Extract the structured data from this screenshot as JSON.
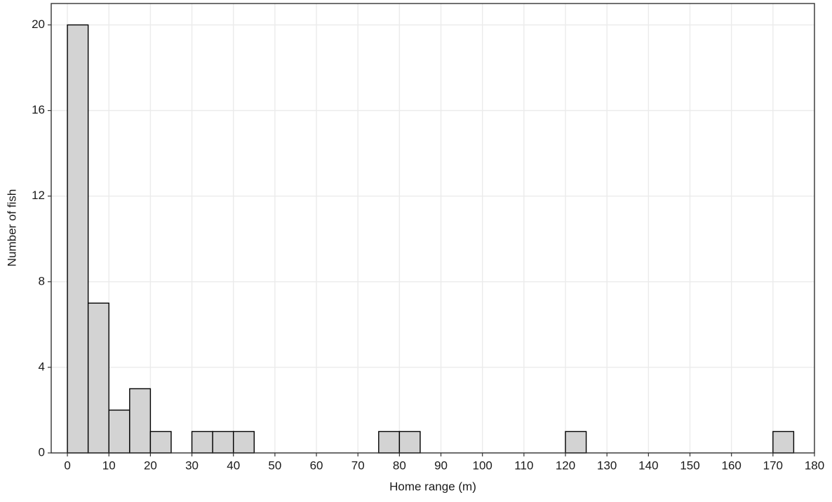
{
  "chart_data": {
    "type": "histogram",
    "x_label": "Home range (m)",
    "y_label": "Number of fish",
    "bins": [
      0,
      5,
      10,
      15,
      20,
      25,
      30,
      35,
      40,
      45,
      50,
      55,
      60,
      65,
      70,
      75,
      80,
      85,
      90,
      95,
      100,
      105,
      110,
      115,
      120,
      125,
      130,
      135,
      140,
      145,
      150,
      155,
      160,
      165,
      170,
      175
    ],
    "values": [
      20,
      7,
      2,
      3,
      1,
      0,
      1,
      1,
      1,
      0,
      0,
      0,
      0,
      0,
      0,
      1,
      1,
      0,
      0,
      0,
      0,
      0,
      0,
      0,
      1,
      0,
      0,
      0,
      0,
      0,
      0,
      0,
      0,
      0,
      1
    ],
    "color": "#d3d3d3",
    "xlim": [
      -3.9,
      180
    ],
    "xticks": [
      0,
      10,
      20,
      30,
      40,
      50,
      60,
      70,
      80,
      90,
      100,
      110,
      120,
      130,
      140,
      150,
      160,
      170,
      180
    ],
    "ylim": [
      0,
      21
    ],
    "yticks": [
      0,
      4,
      8,
      12,
      16,
      20
    ],
    "grid": true
  }
}
